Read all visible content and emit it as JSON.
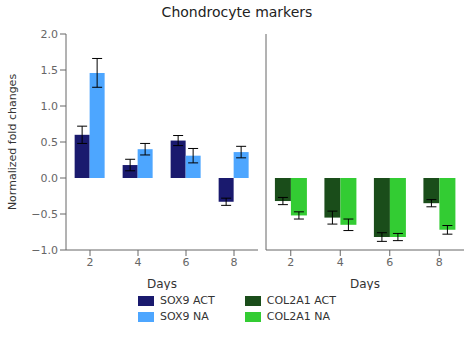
{
  "chart_data": [
    {
      "type": "bar",
      "title": "Chondrocyte markers",
      "xlabel": "Days",
      "ylabel": "Normalized fold changes",
      "categories": [
        "2",
        "4",
        "6",
        "8"
      ],
      "series": [
        {
          "name": "SOX9 ACT",
          "color": "#1a1a6e",
          "values": [
            0.6,
            0.18,
            0.52,
            -0.33
          ],
          "errors": [
            0.12,
            0.08,
            0.07,
            0.05
          ]
        },
        {
          "name": "SOX9 NA",
          "color": "#4da6ff",
          "values": [
            1.46,
            0.4,
            0.31,
            0.36
          ],
          "errors": [
            0.2,
            0.08,
            0.1,
            0.08
          ]
        }
      ],
      "ylim": [
        -1.0,
        2.0
      ],
      "yticks": [
        {
          "value": -1.0,
          "label": "−1.0"
        },
        {
          "value": -0.5,
          "label": "−0.5"
        },
        {
          "value": 0.0,
          "label": "0.0"
        },
        {
          "value": 0.5,
          "label": "0.5"
        },
        {
          "value": 1.0,
          "label": "1.0"
        },
        {
          "value": 1.5,
          "label": "1.5"
        },
        {
          "value": 2.0,
          "label": "2.0"
        }
      ],
      "grid": false,
      "legend": "bottom"
    },
    {
      "type": "bar",
      "xlabel": "Days",
      "categories": [
        "2",
        "4",
        "6",
        "8"
      ],
      "series": [
        {
          "name": "COL2A1 ACT",
          "color": "#1a4d1a",
          "values": [
            -0.32,
            -0.55,
            -0.82,
            -0.35
          ],
          "errors": [
            0.05,
            0.09,
            0.06,
            0.05
          ]
        },
        {
          "name": "COL2A1 NA",
          "color": "#33cc33",
          "values": [
            -0.52,
            -0.65,
            -0.82,
            -0.72
          ],
          "errors": [
            0.05,
            0.08,
            0.05,
            0.06
          ]
        }
      ],
      "ylim": [
        -1.0,
        2.0
      ],
      "yticks": [
        {
          "value": -1.0,
          "label": "−1.0"
        },
        {
          "value": -0.5,
          "label": "−0.5"
        },
        {
          "value": 0.0,
          "label": "0.0"
        },
        {
          "value": 0.5,
          "label": "0.5"
        },
        {
          "value": 1.0,
          "label": "1.0"
        },
        {
          "value": 1.5,
          "label": "1.5"
        },
        {
          "value": 2.0,
          "label": "2.0"
        }
      ],
      "grid": false,
      "legend": "bottom",
      "tick_labels": "x"
    }
  ]
}
